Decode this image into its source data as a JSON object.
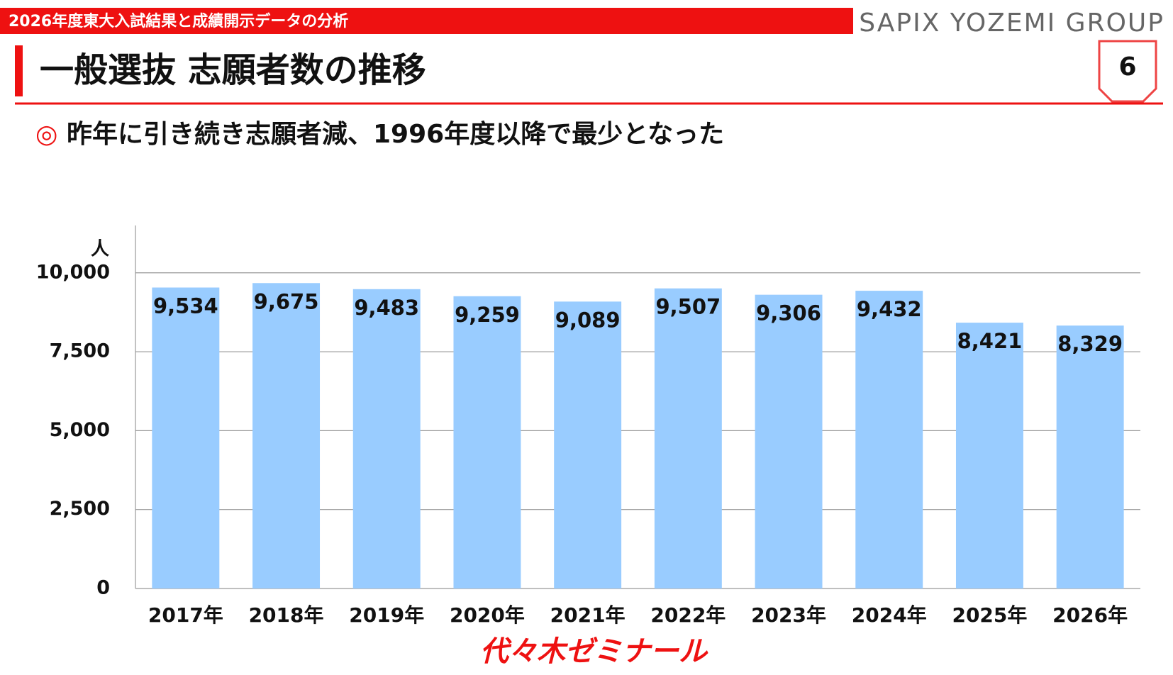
{
  "header": {
    "banner": "2026年度東大入試結果と成績開示データの分析",
    "brand": "SAPIX YOZEMI GROUP",
    "page_number": "6",
    "title": "一般選抜 志願者数の推移",
    "bullet": "◎",
    "subtitle": "昨年に引き続き志願者減、1996年度以降で最少となった"
  },
  "footer": {
    "logo": "代々木ゼミナール"
  },
  "chart_data": {
    "type": "bar",
    "y_unit": "人",
    "categories": [
      "2017年",
      "2018年",
      "2019年",
      "2020年",
      "2021年",
      "2022年",
      "2023年",
      "2024年",
      "2025年",
      "2026年"
    ],
    "values": [
      9534,
      9675,
      9483,
      9259,
      9089,
      9507,
      9306,
      9432,
      8421,
      8329
    ],
    "value_labels": [
      "9,534",
      "9,675",
      "9,483",
      "9,259",
      "9,089",
      "9,507",
      "9,306",
      "9,432",
      "8,421",
      "8,329"
    ],
    "color": "#99ccff",
    "ylim": [
      0,
      11500
    ],
    "yticks": [
      0,
      {
        "value": 2500,
        "label": "2,500"
      },
      {
        "value": 5000,
        "label": "5,000"
      },
      {
        "value": 7500,
        "label": "7,500"
      },
      {
        "value": 10000,
        "label": "10,000"
      }
    ],
    "grid": true
  }
}
